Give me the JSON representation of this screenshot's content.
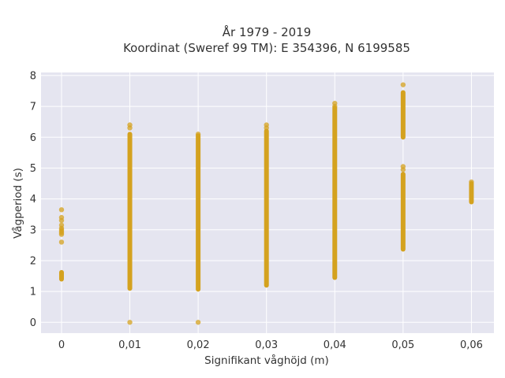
{
  "chart_data": {
    "type": "scatter",
    "title_line1": "År 1979 - 2019",
    "title_line2": "Koordinat (Sweref 99 TM): E 354396, N 6199585",
    "xlabel": "Signifikant våghöjd (m)",
    "ylabel": "Vågperiod (s)",
    "xlim": [
      -0.003,
      0.0633
    ],
    "ylim": [
      -0.35,
      8.1
    ],
    "x_ticks": [
      0,
      0.01,
      0.02,
      0.03,
      0.04,
      0.05,
      0.06
    ],
    "x_tick_labels": [
      "0",
      "0,01",
      "0,02",
      "0,03",
      "0,04",
      "0,05",
      "0,06"
    ],
    "y_ticks": [
      0,
      1,
      2,
      3,
      4,
      5,
      6,
      7,
      8
    ],
    "y_tick_labels": [
      "0",
      "1",
      "2",
      "3",
      "4",
      "5",
      "6",
      "7",
      "8"
    ],
    "grid": true,
    "background_color": "#e5e5f0",
    "marker_color": "#d4a21f",
    "columns": [
      {
        "x": 0,
        "points": [
          3.65,
          3.4,
          3.3,
          3.15,
          3.05,
          3.0,
          2.95,
          2.9,
          2.85,
          2.6
        ],
        "ranges": [
          [
            1.4,
            1.62
          ]
        ]
      },
      {
        "x": 0.01,
        "points": [
          6.4,
          6.3,
          0.0
        ],
        "ranges": [
          [
            1.1,
            6.1
          ]
        ]
      },
      {
        "x": 0.02,
        "points": [
          6.1,
          0.0
        ],
        "ranges": [
          [
            1.07,
            6.05
          ]
        ]
      },
      {
        "x": 0.03,
        "points": [
          6.4,
          6.3
        ],
        "ranges": [
          [
            1.2,
            6.2
          ]
        ]
      },
      {
        "x": 0.04,
        "points": [
          7.1,
          7.0
        ],
        "ranges": [
          [
            1.45,
            6.95
          ]
        ]
      },
      {
        "x": 0.05,
        "points": [
          7.7,
          5.05,
          4.95
        ],
        "ranges": [
          [
            6.0,
            7.45
          ],
          [
            2.37,
            4.8
          ]
        ]
      },
      {
        "x": 0.06,
        "points": [
          4.55
        ],
        "ranges": [
          [
            3.9,
            4.5
          ]
        ]
      }
    ]
  }
}
